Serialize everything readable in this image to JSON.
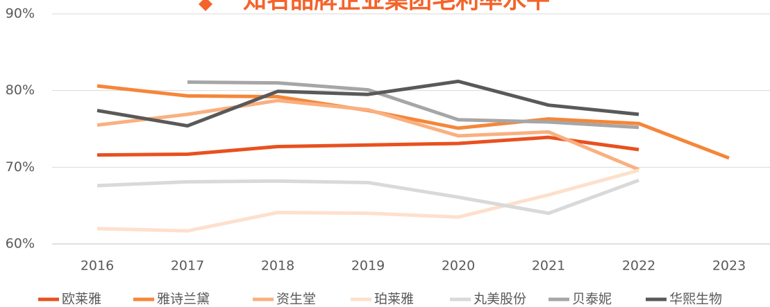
{
  "chart_data": {
    "type": "line",
    "title": "知名品牌企业集团毛利率水平",
    "categories": [
      "2016",
      "2017",
      "2018",
      "2019",
      "2020",
      "2021",
      "2022",
      "2023"
    ],
    "series": [
      {
        "name": "欧莱雅",
        "color": "#e8511f",
        "values": [
          71.6,
          71.7,
          72.7,
          72.9,
          73.1,
          73.9,
          72.3,
          null
        ]
      },
      {
        "name": "雅诗兰黛",
        "color": "#f5863a",
        "values": [
          80.6,
          79.3,
          79.2,
          77.4,
          75.1,
          76.3,
          75.7,
          71.2
        ]
      },
      {
        "name": "资生堂",
        "color": "#f9b080",
        "values": [
          75.5,
          76.9,
          78.7,
          77.5,
          74.1,
          74.6,
          69.7,
          null
        ]
      },
      {
        "name": "珀莱雅",
        "color": "#fde0cc",
        "values": [
          62.0,
          61.7,
          64.1,
          64.0,
          63.5,
          66.4,
          69.6,
          null
        ]
      },
      {
        "name": "丸美股份",
        "color": "#d9d9d9",
        "values": [
          67.6,
          68.1,
          68.2,
          68.0,
          66.1,
          64.0,
          68.3,
          null
        ]
      },
      {
        "name": "贝泰妮",
        "color": "#a6a6a6",
        "values": [
          null,
          81.1,
          81.0,
          80.1,
          76.2,
          75.9,
          75.2,
          null
        ]
      },
      {
        "name": "华熙生物",
        "color": "#595959",
        "values": [
          77.4,
          75.4,
          79.9,
          79.5,
          81.2,
          78.1,
          76.9,
          null
        ]
      }
    ],
    "ylim": [
      60,
      90
    ],
    "yticks": [
      {
        "value": 60,
        "label": "60%"
      },
      {
        "value": 70,
        "label": "70%"
      },
      {
        "value": 80,
        "label": "80%"
      },
      {
        "value": 90,
        "label": "90%"
      }
    ],
    "grid": true,
    "legend": "bottom"
  }
}
